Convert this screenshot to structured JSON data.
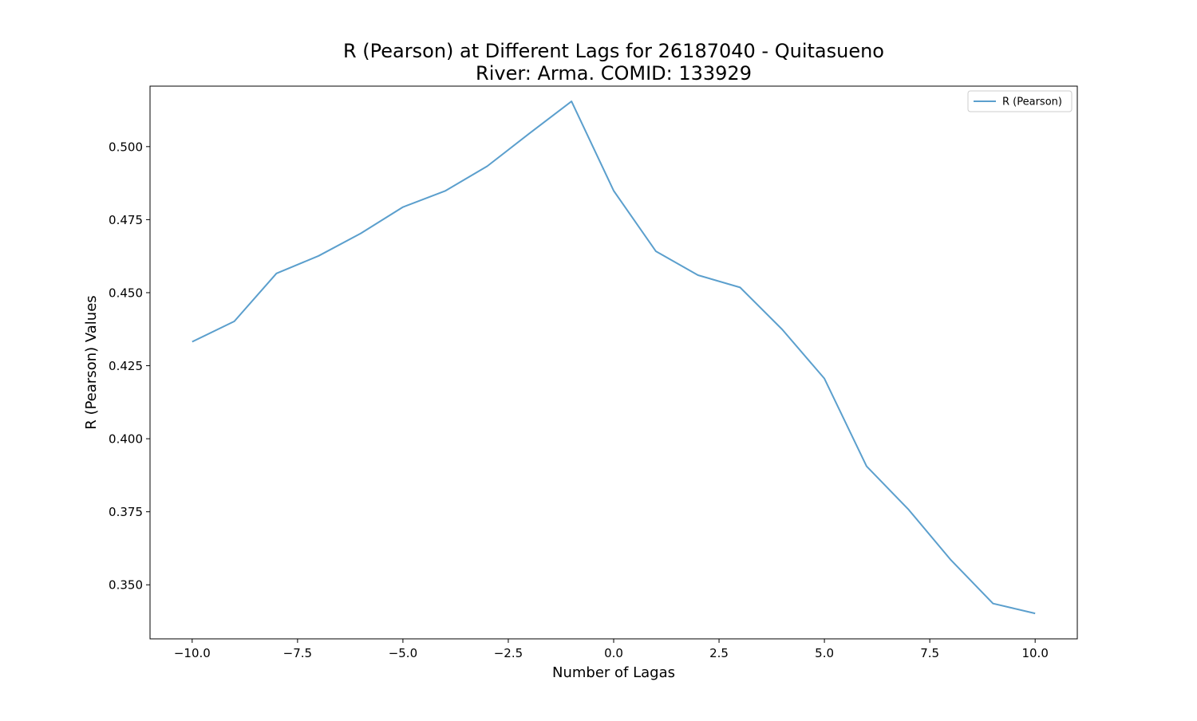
{
  "chart_data": {
    "type": "line",
    "title": "R (Pearson) at Different Lags for 26187040 - Quitasueno\nRiver: Arma. COMID: 133929",
    "title_lines": [
      "R (Pearson) at Different Lags for 26187040 - Quitasueno",
      "River: Arma. COMID: 133929"
    ],
    "xlabel": "Number of Lagas",
    "ylabel": "R (Pearson) Values",
    "xlim": [
      -11.0,
      11.0
    ],
    "ylim": [
      0.3315,
      0.5207
    ],
    "x_ticks": [
      -10.0,
      -7.5,
      -5.0,
      -2.5,
      0.0,
      2.5,
      5.0,
      7.5,
      10.0
    ],
    "x_tick_labels": [
      "−10.0",
      "−7.5",
      "−5.0",
      "−2.5",
      "0.0",
      "2.5",
      "5.0",
      "7.5",
      "10.0"
    ],
    "y_ticks": [
      0.35,
      0.375,
      0.4,
      0.425,
      0.45,
      0.475,
      0.5
    ],
    "y_tick_labels": [
      "0.350",
      "0.375",
      "0.400",
      "0.425",
      "0.450",
      "0.475",
      "0.500"
    ],
    "grid": false,
    "legend": {
      "position": "top-right"
    },
    "series": [
      {
        "name": "R (Pearson)",
        "color": "#5b9fcd",
        "x": [
          -10,
          -9,
          -8,
          -7,
          -6,
          -5,
          -4,
          -3,
          -2,
          -1,
          0,
          1,
          2,
          3,
          4,
          5,
          6,
          7,
          8,
          9,
          10
        ],
        "y": [
          0.4332,
          0.4402,
          0.4566,
          0.4626,
          0.4703,
          0.4793,
          0.4848,
          0.4933,
          0.5045,
          0.5155,
          0.4849,
          0.4642,
          0.456,
          0.4518,
          0.4374,
          0.4206,
          0.3906,
          0.3757,
          0.3585,
          0.3436,
          0.3402
        ]
      }
    ]
  }
}
